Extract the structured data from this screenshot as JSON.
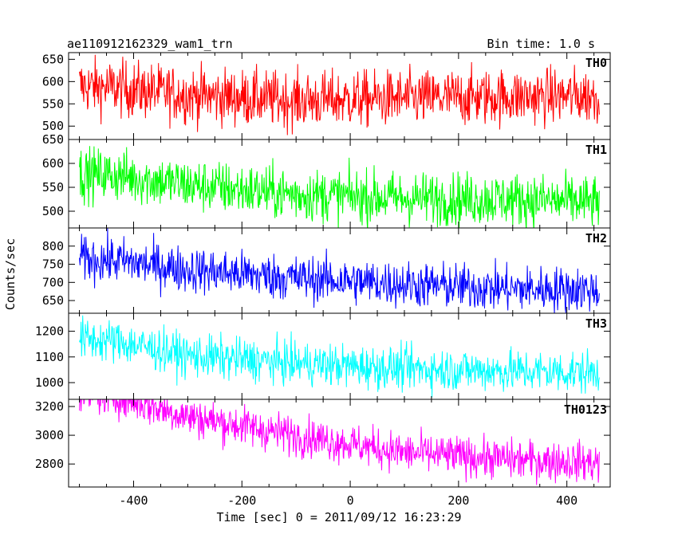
{
  "header": {
    "title": "ae110912162329_wam1_trn",
    "bin_time": "Bin time: 1.0 s"
  },
  "chart_data": {
    "type": "line",
    "title": "ae110912162329_wam1_trn",
    "xlabel": "Time [sec] 0 = 2011/09/12 16:23:29",
    "ylabel": "Counts/sec",
    "xlim": [
      -520,
      480
    ],
    "x_range": [
      -500,
      460
    ],
    "x_ticks": [
      "-400",
      "-200",
      "0",
      "200",
      "400"
    ],
    "x_tick_values": [
      -400,
      -200,
      0,
      200,
      400
    ],
    "grid": false,
    "panels": [
      {
        "name": "TH0",
        "color": "#ff0000",
        "ylim": [
          470,
          665
        ],
        "y_ticks": [
          500,
          550,
          600,
          650
        ],
        "trend": [
          [
            -500,
            590
          ],
          [
            -430,
            585
          ],
          [
            -300,
            570
          ],
          [
            -100,
            558
          ],
          [
            100,
            562
          ],
          [
            300,
            566
          ],
          [
            460,
            568
          ]
        ],
        "noise": 32
      },
      {
        "name": "TH1",
        "color": "#00ff00",
        "ylim": [
          465,
          650
        ],
        "y_ticks": [
          500,
          550,
          600,
          650
        ],
        "trend": [
          [
            -500,
            578
          ],
          [
            -430,
            575
          ],
          [
            -300,
            555
          ],
          [
            -100,
            535
          ],
          [
            100,
            527
          ],
          [
            300,
            525
          ],
          [
            460,
            518
          ]
        ],
        "noise": 28
      },
      {
        "name": "TH2",
        "color": "#0000ff",
        "ylim": [
          615,
          850
        ],
        "y_ticks": [
          650,
          700,
          750,
          800
        ],
        "trend": [
          [
            -500,
            765
          ],
          [
            -430,
            760
          ],
          [
            -300,
            735
          ],
          [
            -100,
            712
          ],
          [
            100,
            695
          ],
          [
            300,
            682
          ],
          [
            460,
            680
          ]
        ],
        "noise": 32
      },
      {
        "name": "TH3",
        "color": "#00ffff",
        "ylim": [
          935,
          1270
        ],
        "y_ticks": [
          1000,
          1100,
          1200
        ],
        "trend": [
          [
            -500,
            1170
          ],
          [
            -430,
            1160
          ],
          [
            -300,
            1105
          ],
          [
            -100,
            1075
          ],
          [
            100,
            1055
          ],
          [
            300,
            1045
          ],
          [
            460,
            1040
          ]
        ],
        "noise": 42
      },
      {
        "name": "TH0123",
        "color": "#ff00ff",
        "ylim": [
          2640,
          3250
        ],
        "y_ticks": [
          2800,
          3000,
          3200
        ],
        "trend": [
          [
            -500,
            3300
          ],
          [
            -430,
            3270
          ],
          [
            -300,
            3130
          ],
          [
            -100,
            3000
          ],
          [
            100,
            2880
          ],
          [
            300,
            2830
          ],
          [
            460,
            2810
          ]
        ],
        "noise": 70
      }
    ]
  }
}
